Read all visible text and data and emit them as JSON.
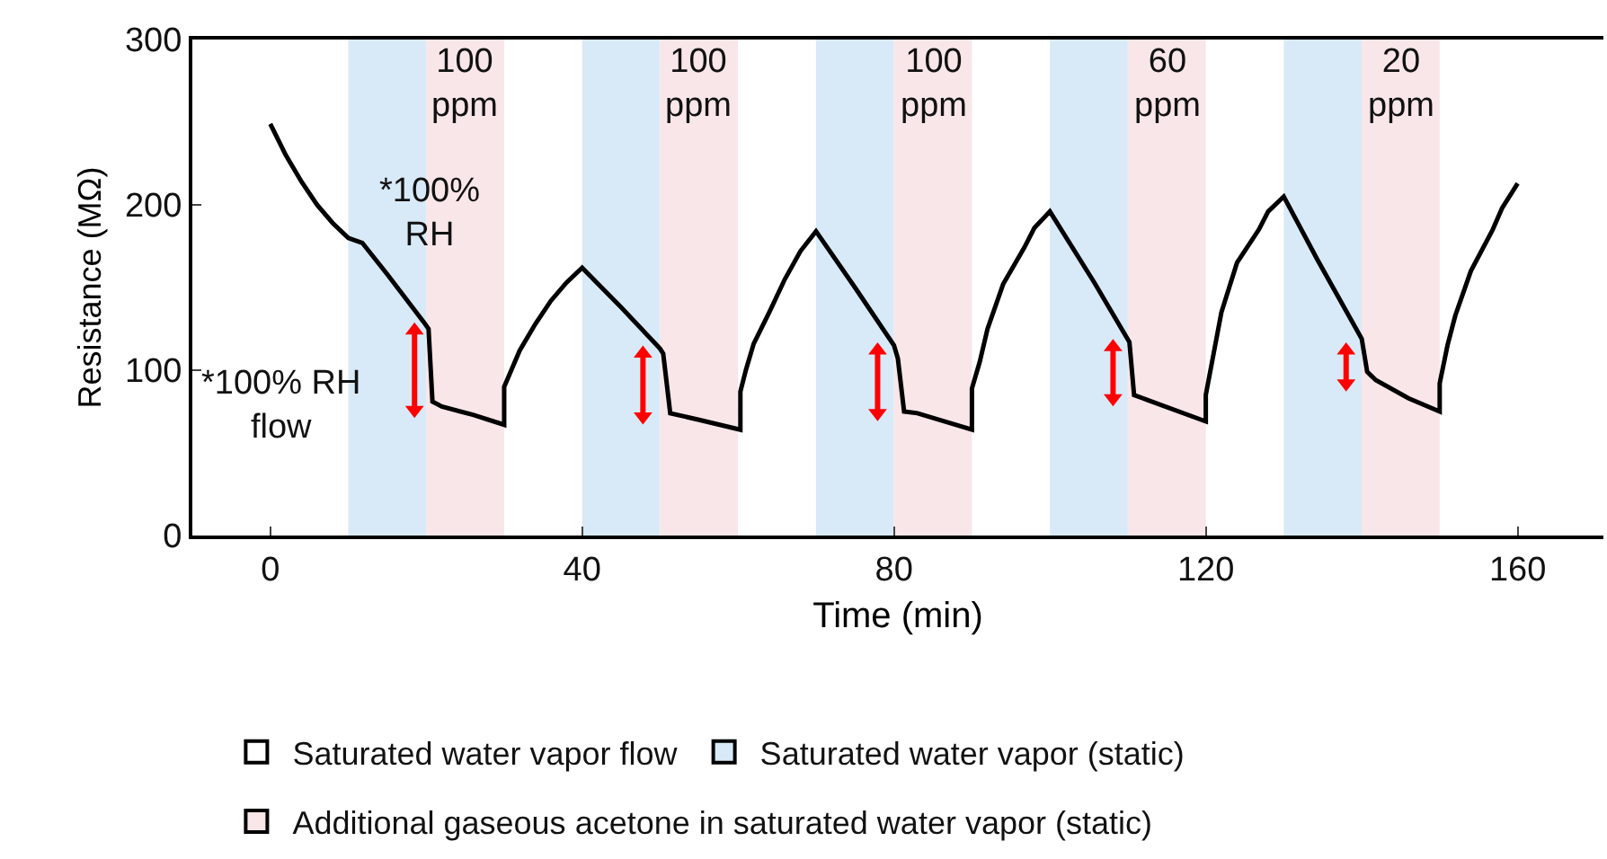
{
  "chart_data": {
    "type": "line",
    "xlabel": "Time (min)",
    "ylabel": "Resistance (MΩ)",
    "xlim": [
      -10,
      171
    ],
    "xticks": [
      0,
      40,
      80,
      120,
      160
    ],
    "ylim": [
      0,
      300
    ],
    "yticks": [
      0,
      100,
      200,
      300
    ],
    "grid": false,
    "series": [
      {
        "color": "#000000",
        "x": [
          0,
          2,
          4,
          6,
          8,
          10,
          11.8,
          15,
          19.7,
          20.3,
          20.8,
          22,
          26,
          30,
          30,
          31,
          32,
          34,
          36,
          38,
          40,
          45,
          50,
          50.4,
          51.3,
          55,
          60.3,
          60.3,
          61,
          62,
          64,
          66,
          68,
          70,
          75,
          80,
          80.5,
          81.3,
          83,
          90,
          90,
          91,
          92,
          94,
          96.7,
          98,
          100,
          105.7,
          110.2,
          110.8,
          112.5,
          120,
          120,
          121,
          122,
          124,
          126.8,
          128,
          130,
          134.3,
          140,
          140.7,
          141.8,
          146,
          150,
          150,
          151,
          152,
          154,
          156.8,
          158,
          160
        ],
        "values": [
          249,
          230,
          214,
          200,
          189,
          180,
          177,
          158,
          129,
          125,
          81,
          78,
          73,
          67,
          90,
          101,
          112,
          128,
          142,
          153,
          162,
          138,
          113,
          110,
          74,
          70,
          64,
          87,
          100,
          116,
          135,
          155,
          172,
          184,
          150,
          115,
          107,
          75,
          74,
          64,
          89,
          105,
          125,
          152,
          174,
          186,
          196,
          153,
          117,
          85,
          82,
          69,
          85,
          110,
          135,
          165,
          185,
          196,
          205,
          167,
          119,
          99,
          94,
          83,
          75,
          92,
          115,
          133,
          160,
          185,
          198,
          213
        ]
      },
      {
        "color": "#ff0000",
        "marker": "triangle",
        "x": [
          18.5,
          18.5,
          null,
          47.8,
          47.8,
          null,
          77.9,
          77.9,
          null,
          108.1,
          108.1,
          null,
          138,
          138
        ],
        "values": [
          76,
          124,
          null,
          72,
          110,
          null,
          74,
          112,
          null,
          83,
          114,
          null,
          92,
          112
        ]
      }
    ],
    "bands": [
      {
        "axis": "x",
        "from": 10,
        "to": 20,
        "color": "#d8eaf8"
      },
      {
        "axis": "x",
        "from": 20,
        "to": 30,
        "label": "100\nppm",
        "color": "#f8e6e8"
      },
      {
        "axis": "x",
        "from": 40,
        "to": 50,
        "color": "#d8eaf8"
      },
      {
        "axis": "x",
        "from": 50,
        "to": 60,
        "label": "100\nppm",
        "color": "#f8e6e8"
      },
      {
        "axis": "x",
        "from": 70,
        "to": 80,
        "color": "#d8eaf8"
      },
      {
        "axis": "x",
        "from": 80,
        "to": 90,
        "label": "100\nppm",
        "color": "#f8e6e8"
      },
      {
        "axis": "x",
        "from": 100,
        "to": 110,
        "color": "#d8eaf8"
      },
      {
        "axis": "x",
        "from": 110,
        "to": 120,
        "label": "60\nppm",
        "color": "#f8e6e8"
      },
      {
        "axis": "x",
        "from": 130,
        "to": 140,
        "color": "#d8eaf8"
      },
      {
        "axis": "x",
        "from": 140,
        "to": 150,
        "label": "20\nppm",
        "color": "#f8e6e8"
      }
    ],
    "annotations": [
      "Saturated water vapor flow",
      "Saturated water vapor (static)",
      "Additional gaseous acetone in saturated water vapor (static)",
      "*100%\nRH",
      "*100% RH\nflow"
    ]
  }
}
